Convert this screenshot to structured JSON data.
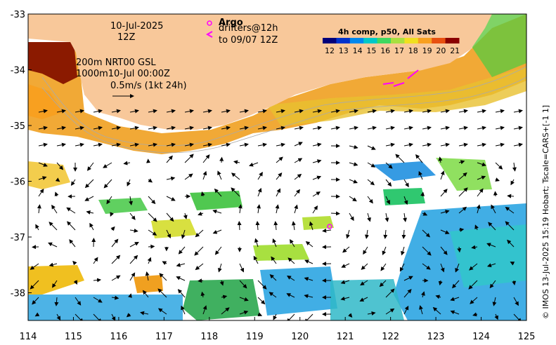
{
  "map": {
    "date": "10-Jul-2025",
    "time": "12Z",
    "legend": {
      "argo_label": "Argo",
      "drifters_label": "drifters@12h",
      "drifters_to": "to 09/07 12Z"
    },
    "info": {
      "depth_line": "200m  NRT00 GSL",
      "depth_line2": "1000m10-Jul 00:00Z",
      "scale": "0.5m/s (1kt 24h)"
    },
    "colorbar": {
      "title": "4h comp, p50, All Sats",
      "ticks": [
        "12",
        "13",
        "14",
        "15",
        "16",
        "17",
        "18",
        "19",
        "20",
        "21"
      ],
      "colors": [
        "#00007a",
        "#0033cc",
        "#0088ee",
        "#00c8c8",
        "#40d860",
        "#a8e040",
        "#f0e020",
        "#f8a020",
        "#e85010",
        "#8b0000"
      ]
    },
    "x_ticks": [
      "114",
      "115",
      "116",
      "117",
      "118",
      "119",
      "120",
      "121",
      "122",
      "123",
      "124",
      "125"
    ],
    "y_ticks": [
      "-33",
      "-34",
      "-35",
      "-36",
      "-37",
      "-38"
    ],
    "side_caption": "© IMOS 13-Jul-2025 15:19 Hobart; Tscale=CARS+[-1 1]",
    "land_color": "#f8c89a"
  }
}
